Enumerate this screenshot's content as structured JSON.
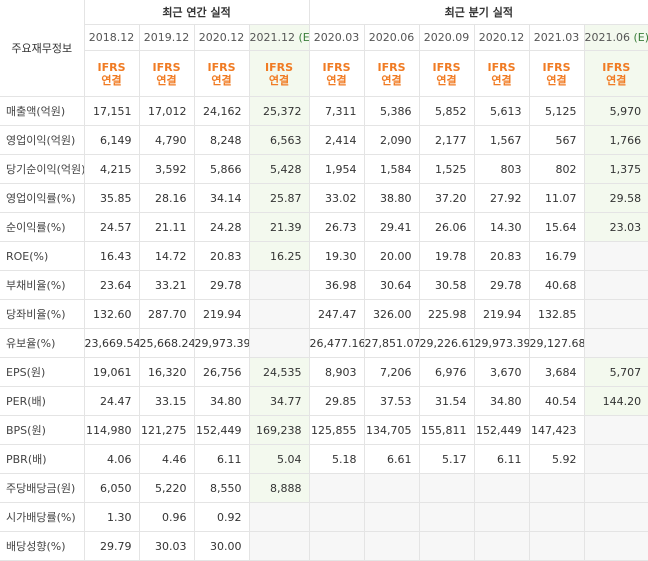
{
  "header": {
    "row_label": "주요재무정보",
    "annual_group": "최근 연간 실적",
    "quarter_group": "최근 분기 실적",
    "ifrs_top": "IFRS",
    "ifrs_bottom": "연결",
    "est_mark": "(E)"
  },
  "columns": [
    {
      "period": "2018.12",
      "est": false
    },
    {
      "period": "2019.12",
      "est": false
    },
    {
      "period": "2020.12",
      "est": false
    },
    {
      "period": "2021.12",
      "est": true
    },
    {
      "period": "2020.03",
      "est": false
    },
    {
      "period": "2020.06",
      "est": false
    },
    {
      "period": "2020.09",
      "est": false
    },
    {
      "period": "2020.12",
      "est": false
    },
    {
      "period": "2021.03",
      "est": false
    },
    {
      "period": "2021.06",
      "est": true
    }
  ],
  "rows": [
    {
      "label": "매출액(억원)",
      "values": [
        "17,151",
        "17,012",
        "24,162",
        "25,372",
        "7,311",
        "5,386",
        "5,852",
        "5,613",
        "5,125",
        "5,970"
      ]
    },
    {
      "label": "영업이익(억원)",
      "values": [
        "6,149",
        "4,790",
        "8,248",
        "6,563",
        "2,414",
        "2,090",
        "2,177",
        "1,567",
        "567",
        "1,766"
      ]
    },
    {
      "label": "당기순이익(억원)",
      "values": [
        "4,215",
        "3,592",
        "5,866",
        "5,428",
        "1,954",
        "1,584",
        "1,525",
        "803",
        "802",
        "1,375"
      ]
    },
    {
      "label": "영업이익률(%)",
      "values": [
        "35.85",
        "28.16",
        "34.14",
        "25.87",
        "33.02",
        "38.80",
        "37.20",
        "27.92",
        "11.07",
        "29.58"
      ]
    },
    {
      "label": "순이익률(%)",
      "values": [
        "24.57",
        "21.11",
        "24.28",
        "21.39",
        "26.73",
        "29.41",
        "26.06",
        "14.30",
        "15.64",
        "23.03"
      ]
    },
    {
      "label": "ROE(%)",
      "values": [
        "16.43",
        "14.72",
        "20.83",
        "16.25",
        "19.30",
        "20.00",
        "19.78",
        "20.83",
        "16.79",
        ""
      ]
    },
    {
      "label": "부채비율(%)",
      "values": [
        "23.64",
        "33.21",
        "29.78",
        "",
        "36.98",
        "30.64",
        "30.58",
        "29.78",
        "40.68",
        ""
      ]
    },
    {
      "label": "당좌비율(%)",
      "values": [
        "132.60",
        "287.70",
        "219.94",
        "",
        "247.47",
        "326.00",
        "225.98",
        "219.94",
        "132.85",
        ""
      ]
    },
    {
      "label": "유보율(%)",
      "values": [
        "23,669.54",
        "25,668.24",
        "29,973.39",
        "",
        "26,477.16",
        "27,851.07",
        "29,226.61",
        "29,973.39",
        "29,127.68",
        ""
      ]
    },
    {
      "label": "EPS(원)",
      "values": [
        "19,061",
        "16,320",
        "26,756",
        "24,535",
        "8,903",
        "7,206",
        "6,976",
        "3,670",
        "3,684",
        "5,707"
      ]
    },
    {
      "label": "PER(배)",
      "values": [
        "24.47",
        "33.15",
        "34.80",
        "34.77",
        "29.85",
        "37.53",
        "31.54",
        "34.80",
        "40.54",
        "144.20"
      ]
    },
    {
      "label": "BPS(원)",
      "values": [
        "114,980",
        "121,275",
        "152,449",
        "169,238",
        "125,855",
        "134,705",
        "155,811",
        "152,449",
        "147,423",
        ""
      ]
    },
    {
      "label": "PBR(배)",
      "values": [
        "4.06",
        "4.46",
        "6.11",
        "5.04",
        "5.18",
        "6.61",
        "5.17",
        "6.11",
        "5.92",
        ""
      ]
    },
    {
      "label": "주당배당금(원)",
      "values": [
        "6,050",
        "5,220",
        "8,550",
        "8,888",
        "",
        "",
        "",
        "",
        "",
        ""
      ]
    },
    {
      "label": "시가배당률(%)",
      "values": [
        "1.30",
        "0.96",
        "0.92",
        "",
        "",
        "",
        "",
        "",
        "",
        ""
      ]
    },
    {
      "label": "배당성향(%)",
      "values": [
        "29.79",
        "30.03",
        "30.00",
        "",
        "",
        "",
        "",
        "",
        "",
        ""
      ]
    }
  ]
}
